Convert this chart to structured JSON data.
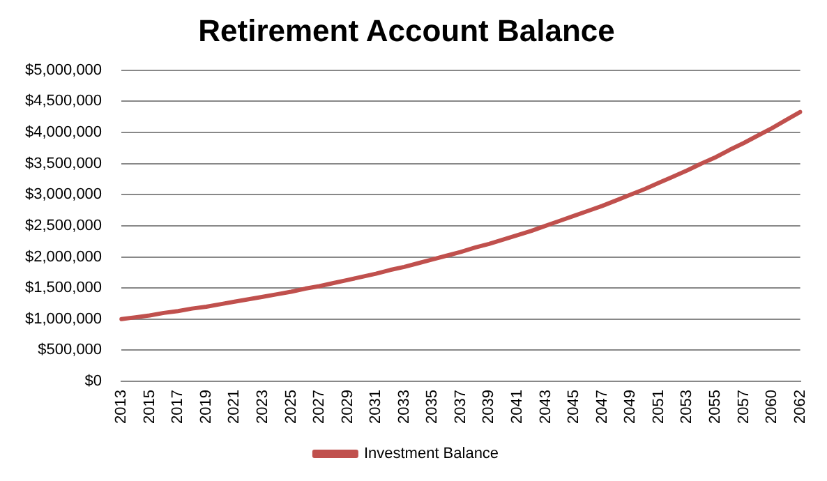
{
  "chart_data": {
    "type": "line",
    "title": "Retirement Account Balance",
    "categories": [
      "2013",
      null,
      "2015",
      null,
      "2017",
      null,
      "2019",
      null,
      "2021",
      null,
      "2023",
      null,
      "2025",
      null,
      "2027",
      null,
      "2029",
      null,
      "2031",
      null,
      "2033",
      null,
      "2035",
      null,
      "2037",
      null,
      "2039",
      null,
      "2041",
      null,
      "2043",
      null,
      "2045",
      null,
      "2047",
      null,
      "2049",
      null,
      "2051",
      null,
      "2053",
      null,
      "2055",
      null,
      "2057",
      null,
      "2060",
      null,
      "2062"
    ],
    "series": [
      {
        "name": "Investment Balance",
        "color": "#c0504d",
        "values": [
          1000000,
          1030000,
          1060000,
          1100000,
          1130000,
          1170000,
          1200000,
          1240000,
          1280000,
          1320000,
          1360000,
          1400000,
          1440000,
          1490000,
          1530000,
          1580000,
          1630000,
          1680000,
          1730000,
          1790000,
          1840000,
          1900000,
          1960000,
          2020000,
          2080000,
          2150000,
          2210000,
          2280000,
          2350000,
          2420000,
          2500000,
          2580000,
          2660000,
          2740000,
          2820000,
          2910000,
          3000000,
          3090000,
          3190000,
          3290000,
          3390000,
          3500000,
          3600000,
          3720000,
          3830000,
          3950000,
          4070000,
          4200000,
          4330000
        ]
      }
    ],
    "ylim": [
      0,
      5000000
    ],
    "yticks": [
      {
        "value": 0,
        "label": "$0"
      },
      {
        "value": 500000,
        "label": "$500,000"
      },
      {
        "value": 1000000,
        "label": "$1,000,000"
      },
      {
        "value": 1500000,
        "label": "$1,500,000"
      },
      {
        "value": 2000000,
        "label": "$2,000,000"
      },
      {
        "value": 2500000,
        "label": "$2,500,000"
      },
      {
        "value": 3000000,
        "label": "$3,000,000"
      },
      {
        "value": 3500000,
        "label": "$3,500,000"
      },
      {
        "value": 4000000,
        "label": "$4,000,000"
      },
      {
        "value": 4500000,
        "label": "$4,500,000"
      },
      {
        "value": 5000000,
        "label": "$5,000,000"
      }
    ],
    "grid": "y",
    "legend": "bottom",
    "marker": "none",
    "line_style": "solid"
  }
}
